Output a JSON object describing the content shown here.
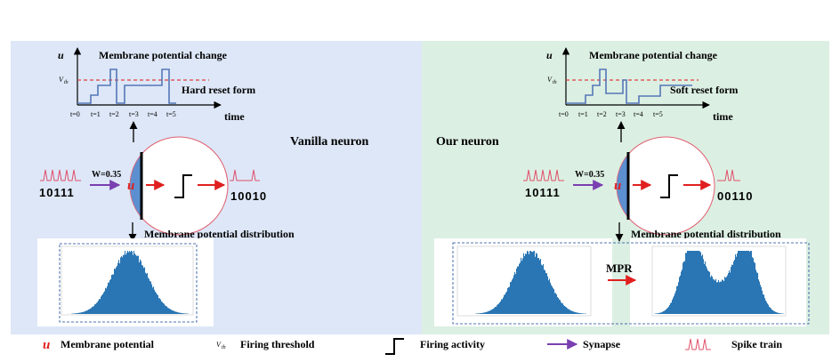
{
  "left_panel": {
    "label": "Vanilla neuron",
    "chart_title": "Membrane potential change",
    "reset_form": "Hard reset form",
    "y_axis": "u",
    "threshold": "V",
    "threshold_sub": "th",
    "x_axis": "time",
    "ticks": [
      "t=0",
      "t=1",
      "t=2",
      "t=3",
      "t=4",
      "t=5"
    ],
    "weight": "W=0.35",
    "input_bits": "10111",
    "output_bits": "10010",
    "neuron_symbol": "u",
    "distribution_label": "Membrane potential distribution"
  },
  "right_panel": {
    "label": "Our neuron",
    "chart_title": "Membrane potential change",
    "reset_form": "Soft reset form",
    "y_axis": "u",
    "threshold": "V",
    "threshold_sub": "th",
    "x_axis": "time",
    "ticks": [
      "t=0",
      "t=1",
      "t=2",
      "t=3",
      "t=4",
      "t=5"
    ],
    "weight": "W=0.35",
    "input_bits": "10111",
    "output_bits": "00110",
    "neuron_symbol": "u",
    "distribution_label": "Membrane potential distribution",
    "mpr_label": "MPR"
  },
  "legend": {
    "membrane_symbol": "u",
    "membrane_label": "Membrane potential",
    "threshold_symbol": "V",
    "threshold_sub": "th",
    "threshold_label": "Firing threshold",
    "firing_label": "Firing activity",
    "synapse_label": "Synapse",
    "spike_label": "Spike train"
  },
  "colors": {
    "left_bg": "#dde7f7",
    "right_bg": "#dcefe3",
    "histogram": "#2a76b4",
    "threshold_line": "#e04040",
    "signal": "#5577b8",
    "spike": "#e0506a",
    "synapse": "#7a3fb0",
    "arrow_red": "#e02020"
  }
}
